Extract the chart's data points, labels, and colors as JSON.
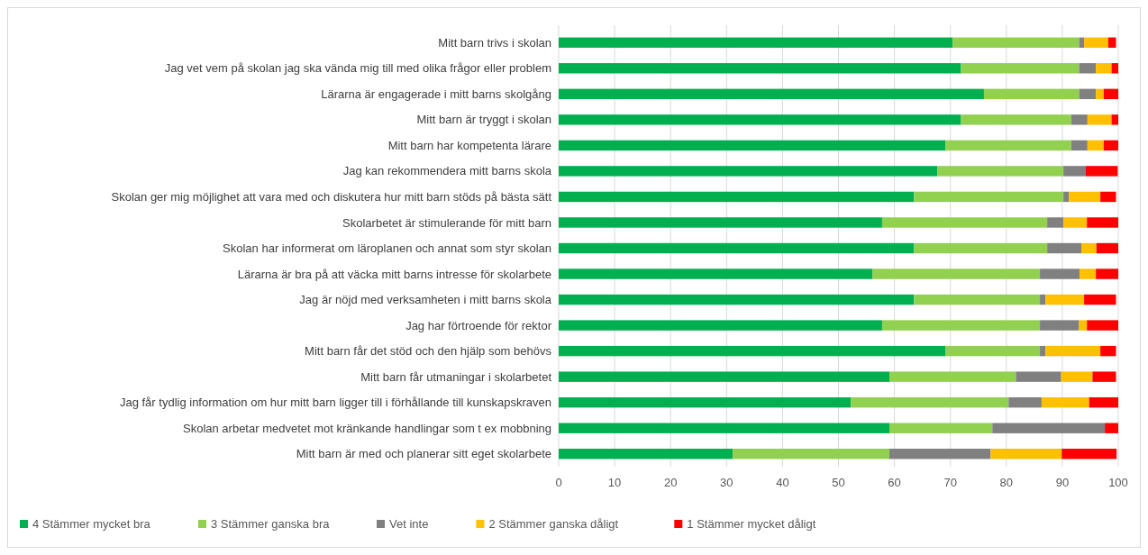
{
  "chart_data": {
    "type": "bar",
    "orientation": "horizontal",
    "stacked": true,
    "categories": [
      "Mitt barn trivs i skolan",
      "Jag vet vem på skolan jag ska vända mig till med olika frågor eller problem",
      "Lärarna är engagerade i mitt barns skolgång",
      "Mitt barn är tryggt i skolan",
      "Mitt barn har kompetenta lärare",
      "Jag kan rekommendera mitt barns skola",
      "Skolan ger mig möjlighet att vara med och diskutera hur mitt barn stöds på bästa sätt",
      "Skolarbetet är stimulerande för mitt barn",
      "Skolan har informerat om läroplanen och annat som styr skolan",
      "Lärarna är bra på att väcka mitt barns intresse för skolarbete",
      "Jag är nöjd med verksamheten i mitt barns skola",
      "Jag har förtroende för rektor",
      "Mitt barn får det stöd och den hjälp som behövs",
      "Mitt barn får utmaningar i skolarbetet",
      "Jag får tydlig information om hur mitt barn ligger till i förhållande till kunskapskraven",
      "Skolan arbetar medvetet mot kränkande handlingar som t ex mobbning",
      "Mitt barn är med och planerar sitt eget skolarbete"
    ],
    "series": [
      {
        "name": "4 Stämmer mycket bra",
        "color": "#00b050",
        "values": [
          70.4,
          71.9,
          76.0,
          71.9,
          69.1,
          67.7,
          63.5,
          57.8,
          63.5,
          56.1,
          63.5,
          57.8,
          69.1,
          59.1,
          52.2,
          59.1,
          31.1
        ]
      },
      {
        "name": "3 Stämmer ganska bra",
        "color": "#92d050",
        "values": [
          22.6,
          21.1,
          17.0,
          19.7,
          22.5,
          22.5,
          26.7,
          29.5,
          23.8,
          29.9,
          22.5,
          28.2,
          16.9,
          22.6,
          28.2,
          18.4,
          28.0
        ]
      },
      {
        "name": "Vet inte",
        "color": "#808080",
        "values": [
          0.9,
          3.0,
          3.0,
          2.9,
          2.9,
          4.0,
          1.0,
          2.9,
          6.1,
          7.1,
          1.0,
          7.0,
          1.0,
          8.1,
          5.9,
          20.1,
          18.1
        ]
      },
      {
        "name": "2 Stämmer ganska dåligt",
        "color": "#ffc000",
        "values": [
          4.3,
          2.8,
          1.4,
          4.3,
          2.9,
          0,
          5.6,
          4.2,
          2.7,
          2.9,
          6.9,
          1.4,
          9.8,
          5.6,
          8.5,
          0,
          12.7
        ]
      },
      {
        "name": "1 Stämmer mycket dåligt",
        "color": "#ff0000",
        "values": [
          1.4,
          1.2,
          2.6,
          1.2,
          2.6,
          5.7,
          2.8,
          5.6,
          3.9,
          4.0,
          5.7,
          5.6,
          2.8,
          4.2,
          5.2,
          2.4,
          9.8
        ]
      }
    ],
    "xlim": [
      0,
      100
    ],
    "xticks": [
      0,
      10,
      20,
      30,
      40,
      50,
      60,
      70,
      80,
      90,
      100
    ],
    "grid": "x",
    "legend": "bottom"
  }
}
